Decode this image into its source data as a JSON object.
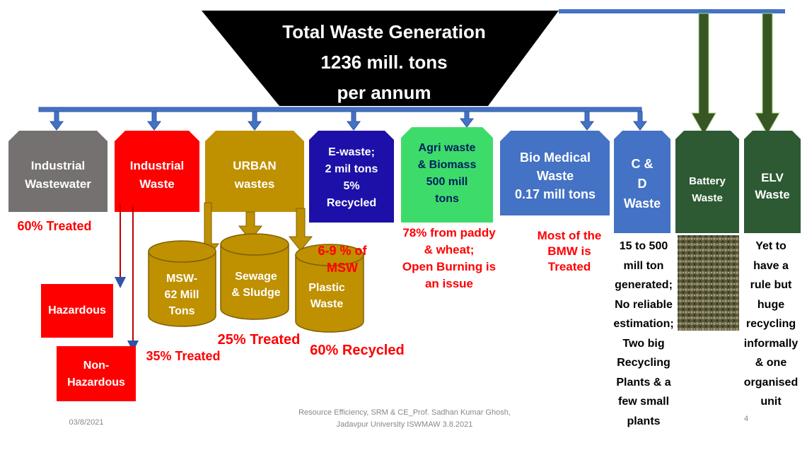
{
  "title": {
    "lines": [
      "Total Waste Generation",
      "1236 mill. tons",
      "per annum"
    ]
  },
  "streams": [
    {
      "lines": [
        "Industrial",
        "Wastewater"
      ]
    },
    {
      "lines": [
        "Industrial",
        "Waste"
      ]
    },
    {
      "lines": [
        "URBAN",
        "wastes"
      ]
    },
    {
      "lines": [
        "E-waste;",
        "2 mil tons",
        "5%",
        "Recycled"
      ]
    },
    {
      "lines": [
        "Agri waste",
        "& Biomass",
        "500 mill",
        "tons"
      ]
    },
    {
      "lines": [
        "Bio Medical",
        "Waste",
        "0.17 mill tons"
      ]
    },
    {
      "lines": [
        "C &",
        "D",
        "Waste"
      ]
    },
    {
      "lines": [
        "Battery",
        "Waste"
      ]
    },
    {
      "lines": [
        "ELV",
        "Waste"
      ]
    }
  ],
  "industrial_wastewater_note": {
    "lines": [
      "60% Treated"
    ]
  },
  "industrial_waste_types": [
    {
      "lines": [
        "Hazardous"
      ]
    },
    {
      "lines": [
        "Non-",
        "Hazardous"
      ]
    }
  ],
  "urban_types": [
    {
      "lines": [
        "MSW-",
        "62 Mill",
        "Tons"
      ]
    },
    {
      "lines": [
        "Sewage",
        "& Sludge"
      ]
    },
    {
      "lines": [
        "Plastic",
        "Waste"
      ]
    }
  ],
  "urban_notes": {
    "msw": {
      "lines": [
        "35% Treated"
      ]
    },
    "sewage": {
      "lines": [
        "25% Treated"
      ]
    },
    "plastic": {
      "lines": [
        "60% Recycled"
      ]
    },
    "plastic_share": {
      "lines": [
        "6-9 % of",
        "MSW"
      ]
    }
  },
  "agri_note": {
    "lines": [
      "78% from paddy",
      "& wheat;",
      "Open Burning is",
      "an issue"
    ]
  },
  "bmw_note": {
    "lines": [
      "Most of the",
      "BMW is",
      "Treated"
    ]
  },
  "cd_note": {
    "lines": [
      "15 to 500",
      "mill ton",
      "generated;",
      "No reliable",
      "estimation;",
      "Two big",
      "Recycling",
      "Plants & a",
      "few small",
      "plants"
    ]
  },
  "elv_note": {
    "lines": [
      "Yet to",
      "have a",
      "rule but",
      "huge",
      "recycling",
      "informally",
      "& one",
      "organised",
      "unit"
    ]
  },
  "footer": {
    "date": {
      "lines": [
        "03/8/2021"
      ]
    },
    "credit": {
      "lines": [
        "Resource Efficiency, SRM & CE_Prof. Sadhan Kumar Ghosh,",
        "Jadavpur University  ISWMAW  3.8.2021"
      ]
    },
    "page": {
      "lines": [
        "4"
      ]
    }
  }
}
